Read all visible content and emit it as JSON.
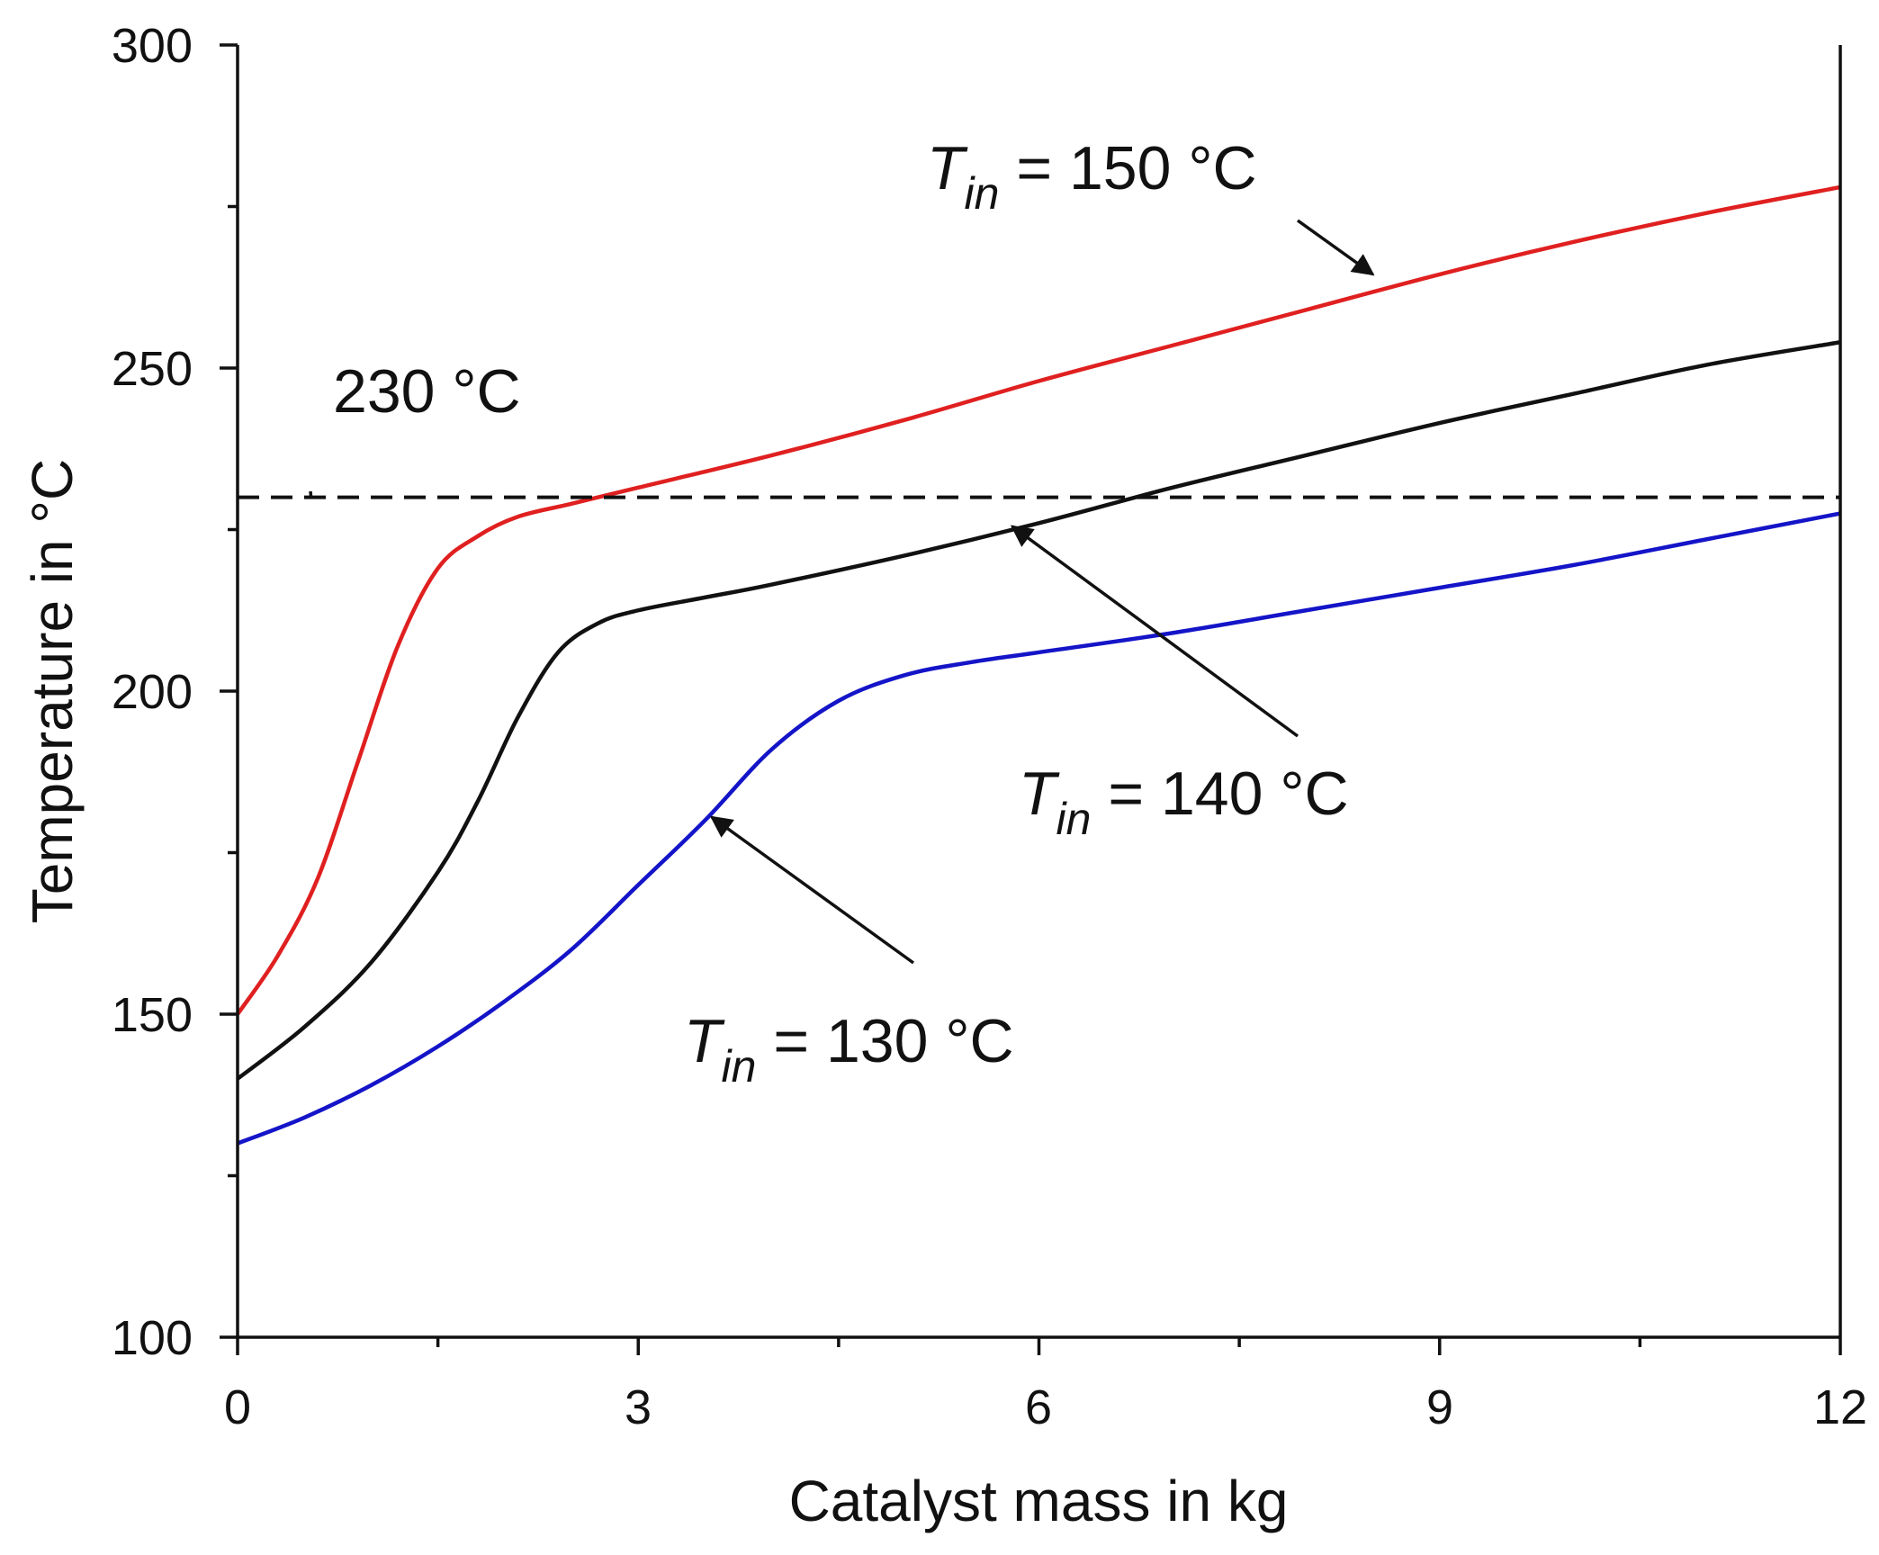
{
  "chart_data": {
    "type": "line",
    "title": "",
    "xlabel": "Catalyst mass in kg",
    "ylabel": "Temperature in °C",
    "xlim": [
      0,
      12
    ],
    "ylim": [
      100,
      300
    ],
    "xticks": [
      0,
      3,
      6,
      9,
      12
    ],
    "yticks": [
      100,
      150,
      200,
      250,
      300
    ],
    "xtick_labels": [
      "0",
      "3",
      "6",
      "9",
      "12"
    ],
    "ytick_labels": [
      "100",
      "150",
      "200",
      "250",
      "300"
    ],
    "grid": false,
    "legend": "none",
    "colors": {
      "red": "#e02020",
      "black": "#111111",
      "blue": "#1414c8"
    },
    "series": [
      {
        "name": "Tin = 150 °C",
        "color": "#e02020",
        "x": [
          0,
          0.3,
          0.6,
          0.9,
          1.2,
          1.5,
          1.8,
          2.1,
          2.5,
          3,
          4,
          5,
          6,
          7,
          8,
          9,
          10,
          11,
          12
        ],
        "y": [
          150,
          159,
          171,
          189,
          207,
          219,
          224,
          227,
          229,
          231.5,
          236.5,
          242,
          248,
          253.5,
          259,
          264.5,
          269.5,
          274,
          278
        ]
      },
      {
        "name": "Tin = 140 °C",
        "color": "#111111",
        "x": [
          0,
          0.5,
          1,
          1.5,
          1.8,
          2.1,
          2.4,
          2.7,
          3,
          3.5,
          4,
          5,
          6,
          7,
          8,
          9,
          10,
          11,
          12
        ],
        "y": [
          140,
          148,
          158,
          172,
          183,
          196,
          206,
          210.5,
          212.5,
          214.5,
          216.5,
          221,
          226,
          231.5,
          236.5,
          241.5,
          246,
          250.5,
          254
        ]
      },
      {
        "name": "Tin = 130 °C",
        "color": "#1414c8",
        "x": [
          0,
          0.5,
          1,
          1.5,
          2,
          2.5,
          3,
          3.5,
          4,
          4.5,
          5,
          5.5,
          6,
          7,
          8,
          9,
          10,
          11,
          12
        ],
        "y": [
          130,
          134,
          139,
          145,
          152,
          160,
          170,
          180,
          191,
          198.5,
          202.5,
          204.5,
          206,
          209,
          212.5,
          216,
          219.5,
          223.5,
          227.5
        ]
      },
      {
        "name": "230 °C",
        "color": "#111111",
        "dash": true,
        "x": [
          0,
          12
        ],
        "y": [
          230,
          230
        ]
      }
    ],
    "annotations": [
      {
        "prefix": "T",
        "subscript": "in",
        "suffix": " = 150 °C",
        "points_to": {
          "series": "Tin = 150 °C",
          "x": 8.5,
          "y": 264.5
        }
      },
      {
        "prefix": "T",
        "subscript": "in",
        "suffix": " = 140 °C",
        "points_to": {
          "series": "Tin = 140 °C",
          "x": 5.8,
          "y": 225.5
        }
      },
      {
        "prefix": "T",
        "subscript": "in",
        "suffix": " = 130 °C",
        "points_to": {
          "series": "Tin = 130 °C",
          "x": 3.55,
          "y": 180.5
        }
      },
      {
        "label": "230 °C",
        "points_to": {
          "series": "230 °C",
          "x": 0.55,
          "y": 230
        }
      }
    ]
  }
}
